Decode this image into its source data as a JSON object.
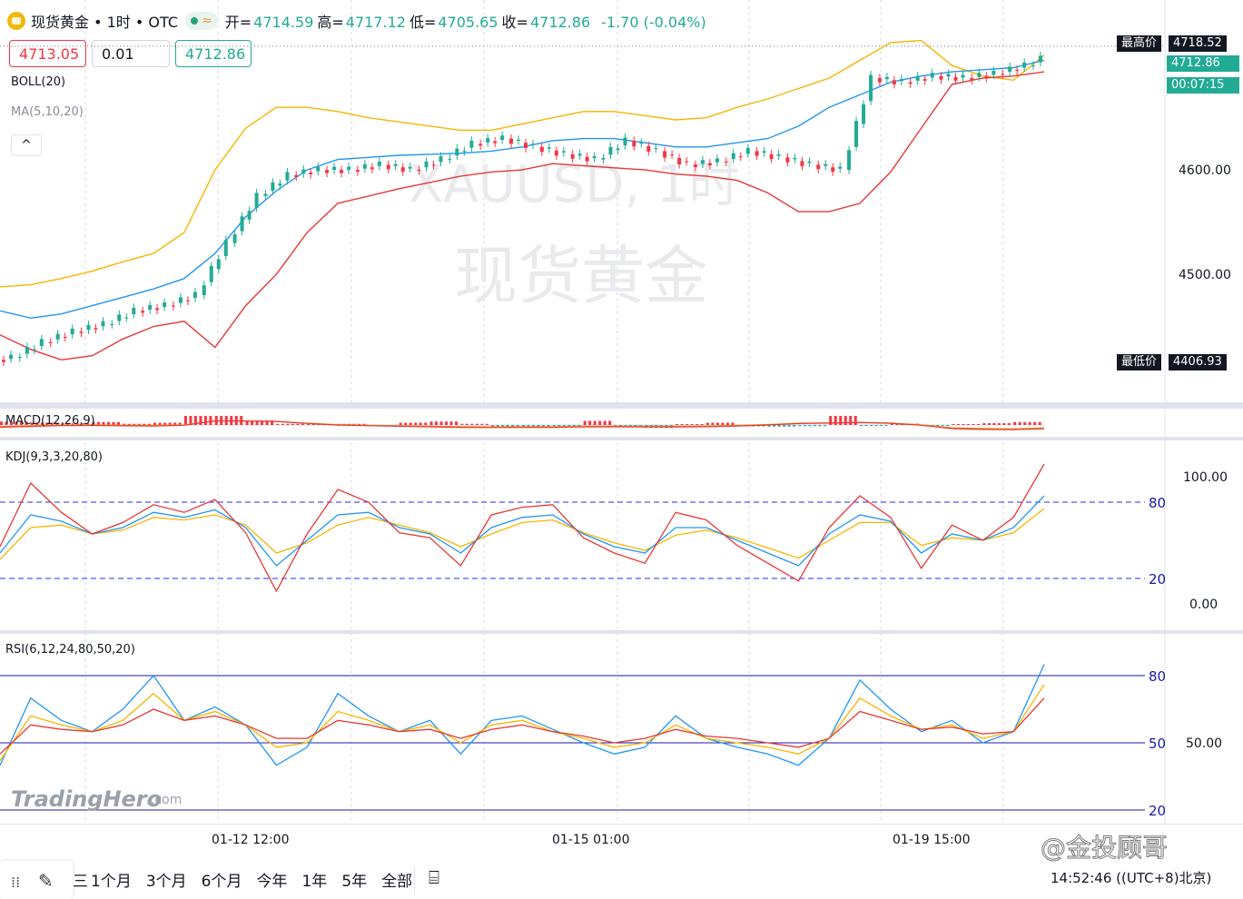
{
  "header": {
    "title": "现货黄金 • 1时 • OTC",
    "approx": "≈",
    "ohlc": [
      {
        "k": "开=",
        "v": "4714.59"
      },
      {
        "k": "高=",
        "v": "4717.12"
      },
      {
        "k": "低=",
        "v": "4705.65"
      },
      {
        "k": "收=",
        "v": "4712.86"
      },
      {
        "k": "",
        "v": "-1.70 (-0.04%)"
      }
    ]
  },
  "order": {
    "sell": "4713.05",
    "qty": "0.01",
    "buy": "4712.86"
  },
  "indicators": {
    "boll": "BOLL(20)",
    "ma": "MA(5,10,20)",
    "collapse": "^",
    "macd": "MACD(12,26,9)",
    "kdj": "KDJ(9,3,3,20,80)",
    "rsi": "RSI(6,12,24,80,50,20)"
  },
  "watermark": {
    "symbol": "XAUUSD, 1时",
    "name": "现货黄金"
  },
  "axis": {
    "price_ticks": [
      "4600.00",
      "4500.00"
    ],
    "high_label": "最高价",
    "high_value": "4718.52",
    "last_value": "4712.86",
    "countdown": "00:07:15",
    "low_label": "最低价",
    "low_value": "4406.93",
    "kdj_ticks": [
      "100.00",
      "0.00"
    ],
    "kdj_levels": [
      "80",
      "20"
    ],
    "rsi_ticks": [
      "50.00"
    ],
    "rsi_levels": [
      "80",
      "50",
      "20"
    ],
    "time_ticks": [
      "01-12 12:00",
      "01-15 01:00",
      "01-19 15:00"
    ]
  },
  "footer": {
    "ranges": [
      "1个月",
      "3个月",
      "6个月",
      "今年",
      "1年",
      "5年",
      "全部"
    ],
    "frag": "三",
    "clock": "14:52:46 ((UTC+8)北京)",
    "brand": "TradingHero",
    "brand_suffix": ".com",
    "credit": "@金投顾哥"
  },
  "colors": {
    "up": "#22ab94",
    "down": "#f23645",
    "boll_up": "#f7b500",
    "boll_mid": "#2196f3",
    "boll_low": "#e53935",
    "dash": "#2a2aff",
    "level": "#1a1aa8"
  },
  "chart_data": {
    "type": "candlestick",
    "title": "现货黄金",
    "timeframe": "1时",
    "x_labels": [
      "01-12 12:00",
      "01-15 01:00",
      "01-19 15:00"
    ],
    "price_range": [
      4380,
      4728
    ],
    "high": 4718.52,
    "low": 4406.93,
    "close": 4712.86,
    "boll_upper": [
      4488,
      4490,
      4496,
      4503,
      4512,
      4520,
      4540,
      4600,
      4640,
      4660,
      4660,
      4656,
      4650,
      4646,
      4642,
      4638,
      4638,
      4644,
      4650,
      4656,
      4656,
      4652,
      4648,
      4650,
      4660,
      4668,
      4678,
      4688,
      4705,
      4722,
      4724,
      4700,
      4690,
      4686,
      4710
    ],
    "boll_mid": [
      4465,
      4458,
      4462,
      4470,
      4478,
      4486,
      4496,
      4520,
      4555,
      4580,
      4600,
      4610,
      4612,
      4614,
      4615,
      4616,
      4618,
      4622,
      4628,
      4630,
      4630,
      4626,
      4622,
      4622,
      4626,
      4630,
      4642,
      4660,
      4672,
      4684,
      4690,
      4694,
      4696,
      4698,
      4705
    ],
    "boll_lower": [
      4442,
      4428,
      4418,
      4422,
      4438,
      4450,
      4455,
      4430,
      4470,
      4500,
      4540,
      4568,
      4575,
      4582,
      4588,
      4594,
      4598,
      4600,
      4606,
      4604,
      4602,
      4600,
      4596,
      4594,
      4590,
      4578,
      4560,
      4560,
      4568,
      4598,
      4640,
      4682,
      4688,
      4690,
      4694
    ],
    "closes": [
      4420,
      4435,
      4445,
      4452,
      4465,
      4470,
      4480,
      4530,
      4575,
      4595,
      4600,
      4600,
      4605,
      4600,
      4610,
      4625,
      4630,
      4622,
      4615,
      4610,
      4628,
      4618,
      4605,
      4608,
      4618,
      4612,
      4605,
      4600,
      4688,
      4684,
      4690,
      4688,
      4692,
      4700,
      4712.86
    ],
    "kdj": {
      "k": [
        40,
        70,
        65,
        55,
        60,
        72,
        68,
        74,
        60,
        30,
        50,
        70,
        72,
        60,
        55,
        40,
        60,
        68,
        70,
        55,
        45,
        40,
        60,
        60,
        50,
        40,
        30,
        55,
        70,
        65,
        40,
        55,
        50,
        60,
        85
      ],
      "d": [
        35,
        60,
        62,
        55,
        58,
        68,
        66,
        70,
        62,
        40,
        48,
        62,
        68,
        62,
        56,
        45,
        55,
        64,
        66,
        56,
        48,
        42,
        54,
        58,
        52,
        44,
        36,
        50,
        64,
        64,
        46,
        52,
        50,
        56,
        75
      ],
      "j": [
        45,
        95,
        72,
        55,
        64,
        78,
        72,
        82,
        56,
        10,
        55,
        90,
        80,
        56,
        52,
        30,
        70,
        76,
        78,
        52,
        40,
        32,
        72,
        66,
        46,
        32,
        18,
        60,
        85,
        68,
        28,
        62,
        50,
        68,
        110
      ]
    },
    "rsi": {
      "r6": [
        40,
        70,
        60,
        55,
        65,
        80,
        60,
        66,
        58,
        40,
        48,
        72,
        62,
        55,
        60,
        45,
        60,
        62,
        56,
        50,
        45,
        48,
        62,
        52,
        48,
        45,
        40,
        52,
        78,
        65,
        55,
        60,
        50,
        55,
        85
      ],
      "r12": [
        42,
        62,
        58,
        55,
        60,
        72,
        60,
        64,
        58,
        48,
        50,
        64,
        60,
        55,
        58,
        50,
        58,
        60,
        55,
        52,
        48,
        50,
        58,
        52,
        50,
        48,
        45,
        52,
        70,
        62,
        56,
        58,
        52,
        55,
        76
      ],
      "r24": [
        45,
        58,
        56,
        55,
        58,
        65,
        60,
        62,
        58,
        52,
        52,
        60,
        58,
        55,
        56,
        52,
        56,
        58,
        55,
        53,
        50,
        52,
        56,
        53,
        52,
        50,
        48,
        52,
        64,
        60,
        56,
        57,
        54,
        55,
        70
      ]
    }
  }
}
